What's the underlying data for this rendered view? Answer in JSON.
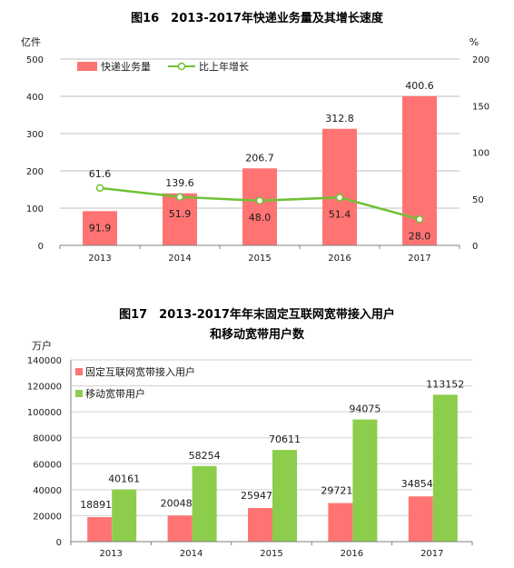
{
  "chart_data": [
    {
      "type": "bar",
      "title": "图16　2013-2017年快递业务量及其增长速度",
      "categories": [
        "2013",
        "2014",
        "2015",
        "2016",
        "2017"
      ],
      "y_unit_left": "亿件",
      "y_unit_right": "%",
      "ylim_left": [
        0,
        500
      ],
      "ylim_right": [
        0,
        200
      ],
      "yticks_left": [
        "0",
        "100",
        "200",
        "300",
        "400",
        "500"
      ],
      "yticks_right": [
        "0",
        "50",
        "100",
        "150",
        "200"
      ],
      "legend_position": "top-left",
      "series": [
        {
          "name": "快递业务量",
          "type": "bar",
          "axis": "left",
          "values": [
            91.9,
            139.6,
            206.7,
            312.8,
            400.6
          ],
          "labels": [
            "91.9",
            "139.6",
            "206.7",
            "312.8",
            "400.6"
          ],
          "color": "#ff7473"
        },
        {
          "name": "比上年增长",
          "type": "line",
          "axis": "right",
          "values": [
            61.6,
            51.9,
            48.0,
            51.4,
            28.0
          ],
          "labels": [
            "61.6",
            "51.9",
            "48.0",
            "51.4",
            "28.0"
          ],
          "color": "#6fc136"
        }
      ]
    },
    {
      "type": "bar",
      "title": "图17　2013-2017年年末固定互联网宽带接入用户",
      "subtitle": "和移动宽带用户数",
      "categories": [
        "2013",
        "2014",
        "2015",
        "2016",
        "2017"
      ],
      "y_unit": "万户",
      "ylim": [
        0,
        140000
      ],
      "yticks": [
        "0",
        "20000",
        "40000",
        "60000",
        "80000",
        "100000",
        "120000",
        "140000"
      ],
      "legend_position": "top-left",
      "series": [
        {
          "name": "固定互联网宽带接入用户",
          "values": [
            18891,
            20048,
            25947,
            29721,
            34854
          ],
          "labels": [
            "18891",
            "20048",
            "25947",
            "29721",
            "34854"
          ],
          "color": "#ff7473"
        },
        {
          "name": "移动宽带用户",
          "values": [
            40161,
            58254,
            70611,
            94075,
            113152
          ],
          "labels": [
            "40161",
            "58254",
            "70611",
            "94075",
            "113152"
          ],
          "color": "#8ccd4c"
        }
      ]
    }
  ]
}
